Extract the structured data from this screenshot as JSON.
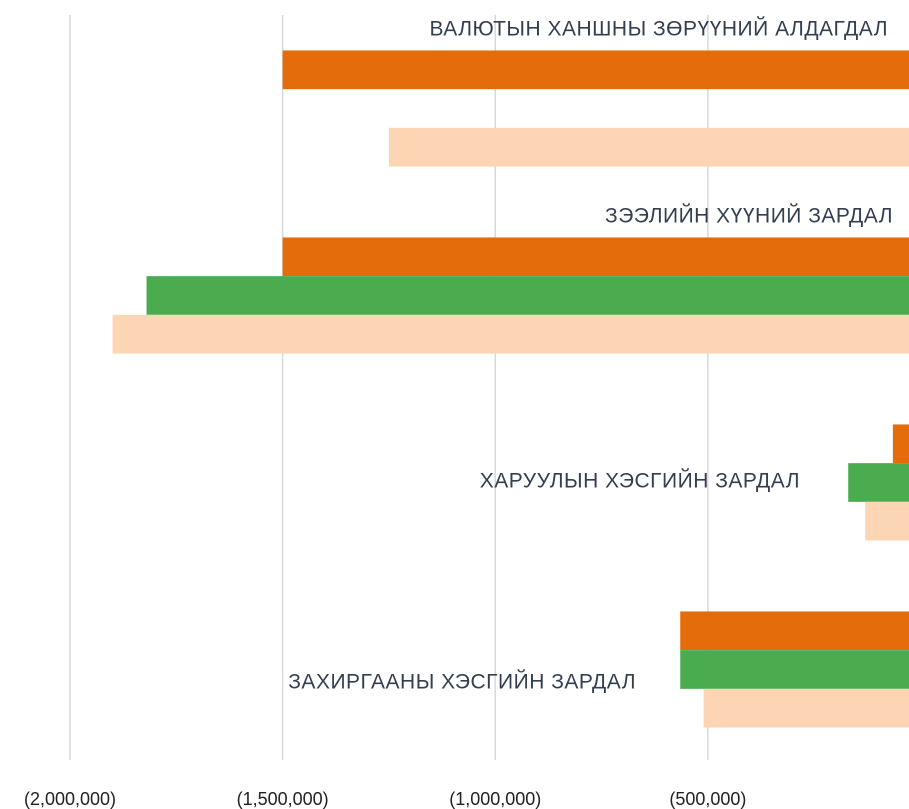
{
  "chart_data": {
    "type": "bar",
    "orientation": "horizontal",
    "categories": [
      "ВАЛЮТЫН ХАНШНЫ ЗӨРҮҮНИЙ АЛДАГДАЛ",
      "ЗЭЭЛИЙН ХҮҮНИЙ ЗАРДАЛ",
      "ХАРУУЛЫН ХЭСГИЙН ЗАРДАЛ",
      "ЗАХИРГААНЫ ХЭСГИЙН ЗАРДАЛ"
    ],
    "series": [
      {
        "color": "#e46c0a",
        "values": [
          -1500000,
          -1500000,
          -65000,
          -565000
        ]
      },
      {
        "color": "#4aac4f",
        "values": [
          null,
          -1820000,
          -170000,
          -565000
        ]
      },
      {
        "color": "#fcd5b5",
        "values": [
          -1250000,
          -1900000,
          -130000,
          -510000
        ]
      }
    ],
    "xlim": [
      -2000000,
      0
    ],
    "xticks": [
      {
        "value": -2000000,
        "label": "(2,000,000)"
      },
      {
        "value": -1500000,
        "label": "(1,500,000)"
      },
      {
        "value": -1000000,
        "label": "(1,000,000)"
      },
      {
        "value": -500000,
        "label": "(500,000)"
      }
    ],
    "grid": true
  }
}
